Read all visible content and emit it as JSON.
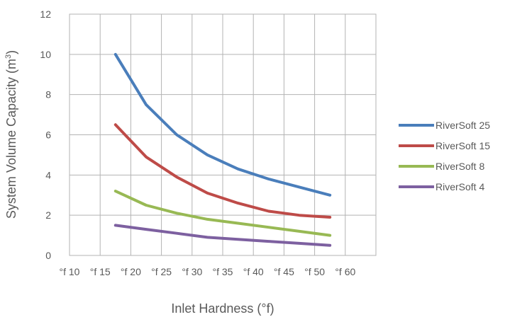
{
  "chart_data": {
    "type": "line",
    "xlabel": "Inlet Hardness (°f)",
    "ylabel_main": "System Volume Capacity (m",
    "ylabel_sup": "3",
    "ylabel_end": ")",
    "x_ticks": [
      {
        "value": 10,
        "label": "°f 10"
      },
      {
        "value": 15,
        "label": "°f 15"
      },
      {
        "value": 20,
        "label": "°f 20"
      },
      {
        "value": 25,
        "label": "°f 25"
      },
      {
        "value": 30,
        "label": "°f 30"
      },
      {
        "value": 35,
        "label": "°f 35"
      },
      {
        "value": 40,
        "label": "°f 40"
      },
      {
        "value": 45,
        "label": "°f 45"
      },
      {
        "value": 50,
        "label": "°f 50"
      },
      {
        "value": 60,
        "label": "°f 60"
      }
    ],
    "y_ticks": [
      {
        "value": 0,
        "label": "0"
      },
      {
        "value": 2,
        "label": "2"
      },
      {
        "value": 4,
        "label": "4"
      },
      {
        "value": 6,
        "label": "6"
      },
      {
        "value": 8,
        "label": "8"
      },
      {
        "value": 10,
        "label": "10"
      },
      {
        "value": 12,
        "label": "12"
      }
    ],
    "ylim": [
      0,
      12
    ],
    "grid": true,
    "legend_position": "right",
    "x": [
      15,
      20,
      25,
      30,
      35,
      40,
      45,
      50
    ],
    "series": [
      {
        "name": "RiverSoft 25",
        "color": "#4a7ebb",
        "values": [
          10.0,
          7.5,
          6.0,
          5.0,
          4.3,
          3.8,
          3.4,
          3.0
        ]
      },
      {
        "name": "RiverSoft 15",
        "color": "#be4b48",
        "values": [
          6.5,
          4.9,
          3.9,
          3.1,
          2.6,
          2.2,
          2.0,
          1.9
        ]
      },
      {
        "name": "RiverSoft 8",
        "color": "#98b954",
        "values": [
          3.2,
          2.5,
          2.1,
          1.8,
          1.6,
          1.4,
          1.2,
          1.0
        ]
      },
      {
        "name": "RiverSoft 4",
        "color": "#7d60a0",
        "values": [
          1.5,
          1.3,
          1.1,
          0.9,
          0.8,
          0.7,
          0.6,
          0.5
        ]
      }
    ]
  }
}
